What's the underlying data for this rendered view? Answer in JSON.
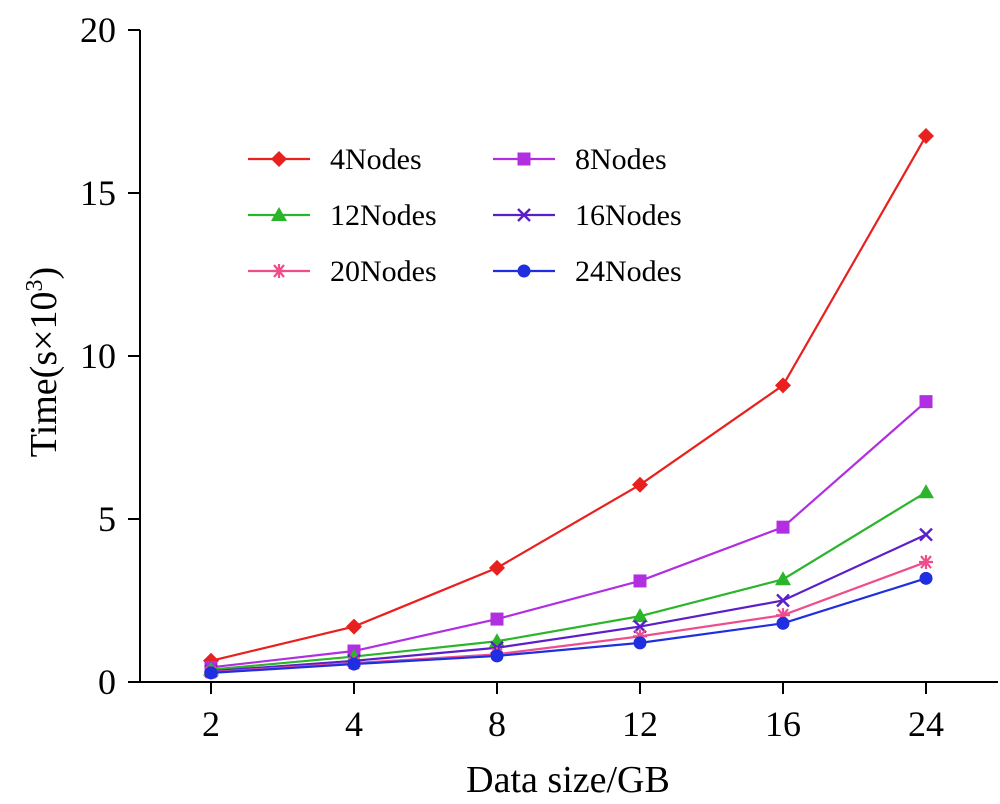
{
  "chart_data": {
    "type": "line",
    "xlabel": "Data size/GB",
    "ylabel_main": "Time(s×10",
    "ylabel_sup": "3",
    "ylabel_close": ")",
    "x_categories": [
      "2",
      "4",
      "8",
      "12",
      "16",
      "24"
    ],
    "y_ticks": [
      "0",
      "5",
      "10",
      "15",
      "20"
    ],
    "y_tick_values": [
      0,
      5,
      10,
      15,
      20
    ],
    "ylim": [
      0,
      20
    ],
    "grid": false,
    "legend_position": "upper-left",
    "series": [
      {
        "name": "4Nodes",
        "color": "#e8201e",
        "marker": "diamond",
        "values": [
          0.65,
          1.7,
          3.5,
          6.05,
          9.1,
          16.75
        ]
      },
      {
        "name": "8Nodes",
        "color": "#b12fe0",
        "marker": "square",
        "values": [
          0.45,
          0.95,
          1.93,
          3.1,
          4.75,
          8.6
        ]
      },
      {
        "name": "12Nodes",
        "color": "#2ab52a",
        "marker": "triangle",
        "values": [
          0.38,
          0.78,
          1.25,
          2.02,
          3.15,
          5.82
        ]
      },
      {
        "name": "16Nodes",
        "color": "#5a1fc8",
        "marker": "x",
        "values": [
          0.33,
          0.65,
          1.05,
          1.7,
          2.5,
          4.52
        ]
      },
      {
        "name": "20Nodes",
        "color": "#ee4d8c",
        "marker": "asterisk",
        "values": [
          0.3,
          0.58,
          0.85,
          1.4,
          2.05,
          3.68
        ]
      },
      {
        "name": "24Nodes",
        "color": "#1e2ee0",
        "marker": "circle",
        "values": [
          0.28,
          0.55,
          0.8,
          1.2,
          1.8,
          3.18
        ]
      }
    ]
  }
}
